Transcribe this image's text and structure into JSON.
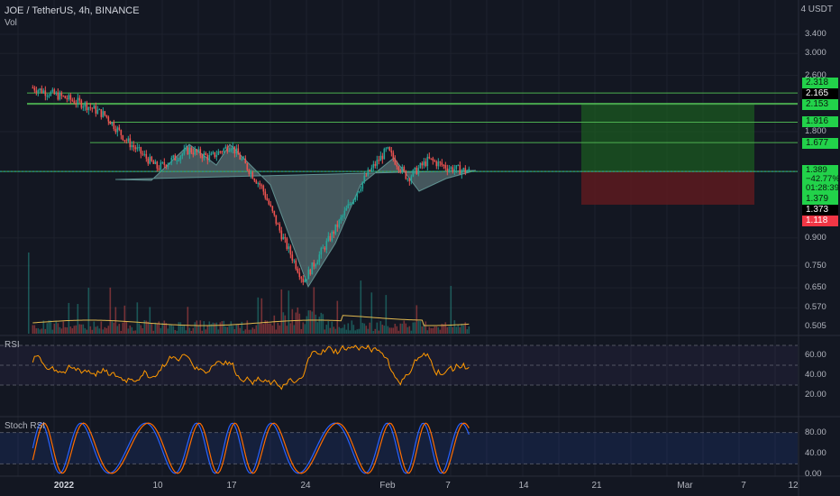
{
  "header": {
    "symbol_line": "JOE / TetherUS, 4h, BINANCE",
    "volume_label": "Vol",
    "currency": "4 USDT"
  },
  "colors": {
    "background": "#131722",
    "up_candle": "#26a69a",
    "down_candle": "#ef5350",
    "hline": "#4caf50",
    "pattern_fill": "#b2dfdb",
    "profit_zone": "#1b5e20",
    "loss_zone": "#5d1a1f",
    "rsi_line": "#ff9800",
    "stoch_k": "#2962ff",
    "stoch_d": "#ff6d00"
  },
  "price_axis": {
    "ticks": [
      "3.400",
      "3.000",
      "2.600",
      "1.800",
      "0.900",
      "0.750",
      "0.650",
      "0.570",
      "0.505"
    ],
    "labels": [
      {
        "text": "2.318",
        "style": "green"
      },
      {
        "text": "2.165",
        "style": "black"
      },
      {
        "text": "2.153",
        "style": "green"
      },
      {
        "text": "1.916",
        "style": "green"
      },
      {
        "text": "1.677",
        "style": "green"
      },
      {
        "text": "1.389\n−42.77%\n01:28:39",
        "style": "green-big"
      },
      {
        "text": "1.379",
        "style": "green"
      },
      {
        "text": "1.373",
        "style": "black"
      },
      {
        "text": "1.118",
        "style": "red"
      }
    ]
  },
  "horizontal_levels": [
    "2.318",
    "2.165",
    "2.153",
    "1.916",
    "1.677",
    "1.389"
  ],
  "rsi": {
    "label": "RSI",
    "ticks": [
      "60.00",
      "40.00",
      "20.00"
    ]
  },
  "stoch_rsi": {
    "label": "Stoch RSI",
    "ticks": [
      "80.00",
      "40.00",
      "0.00"
    ]
  },
  "time_axis": {
    "labels": [
      {
        "text": "2022",
        "bold": true
      },
      {
        "text": "10",
        "bold": false
      },
      {
        "text": "17",
        "bold": false
      },
      {
        "text": "24",
        "bold": false
      },
      {
        "text": "Feb",
        "bold": false
      },
      {
        "text": "7",
        "bold": false
      },
      {
        "text": "14",
        "bold": false
      },
      {
        "text": "21",
        "bold": false
      },
      {
        "text": "Mar",
        "bold": false
      },
      {
        "text": "7",
        "bold": false
      },
      {
        "text": "12",
        "bold": false
      }
    ]
  },
  "chart_data": {
    "type": "candlestick",
    "title": "JOE / TetherUS, 4h, BINANCE",
    "x_range": [
      "2021-12-29",
      "2022-03-12"
    ],
    "y_range": [
      0.505,
      3.4
    ],
    "log_scale": true,
    "price_path": [
      {
        "date": "2021-12-29",
        "price": 2.4
      },
      {
        "date": "2022-01-01",
        "price": 2.25
      },
      {
        "date": "2022-01-03",
        "price": 2.15
      },
      {
        "date": "2022-01-05",
        "price": 2.0
      },
      {
        "date": "2022-01-07",
        "price": 1.7
      },
      {
        "date": "2022-01-10",
        "price": 1.42
      },
      {
        "date": "2022-01-13",
        "price": 1.6
      },
      {
        "date": "2022-01-15",
        "price": 1.52
      },
      {
        "date": "2022-01-17",
        "price": 1.65
      },
      {
        "date": "2022-01-20",
        "price": 1.25
      },
      {
        "date": "2022-01-22",
        "price": 0.9
      },
      {
        "date": "2022-01-24",
        "price": 0.68
      },
      {
        "date": "2022-01-27",
        "price": 0.95
      },
      {
        "date": "2022-01-30",
        "price": 1.35
      },
      {
        "date": "2022-02-01",
        "price": 1.6
      },
      {
        "date": "2022-02-03",
        "price": 1.33
      },
      {
        "date": "2022-02-05",
        "price": 1.5
      },
      {
        "date": "2022-02-07",
        "price": 1.42
      },
      {
        "date": "2022-02-09",
        "price": 1.389
      }
    ],
    "pattern": "inverse head and shoulders",
    "levels": [
      2.318,
      2.165,
      2.153,
      1.916,
      1.677,
      1.389
    ],
    "position": {
      "entry": 1.389,
      "target": 2.153,
      "stop": 1.118
    },
    "last_price": 1.389,
    "change_percent": "−42.77%",
    "countdown": "01:28:39"
  }
}
